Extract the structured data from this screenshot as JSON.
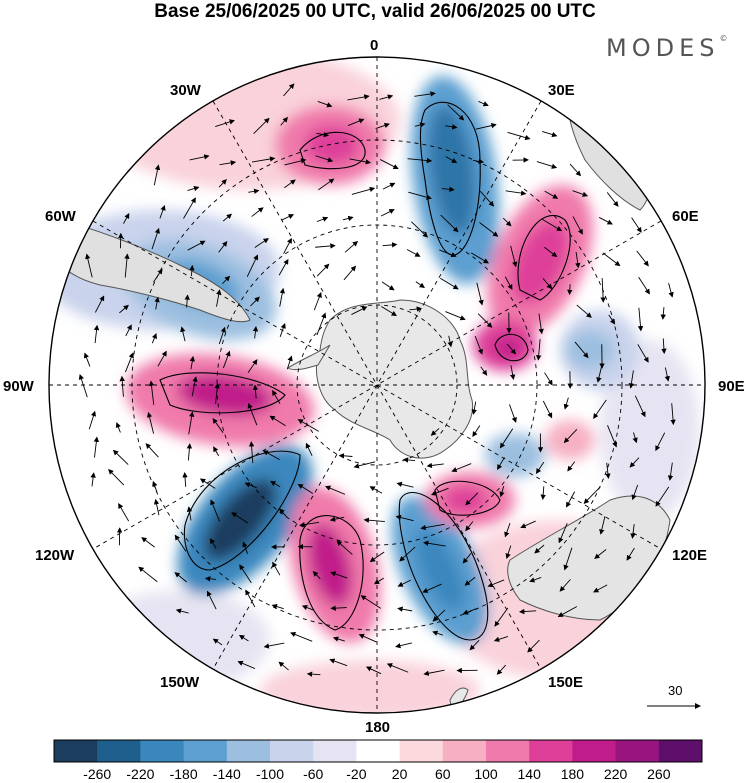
{
  "header": {
    "title": "Base 25/06/2025 00 UTC, valid 26/06/2025 00 UTC",
    "brand": "MODES",
    "brand_mark": "©"
  },
  "map": {
    "projection": "south polar stereographic",
    "longitude_labels": {
      "n0": "0",
      "n30e": "30E",
      "n60e": "60E",
      "n90e": "90E",
      "n120e": "120E",
      "n150e": "150E",
      "n180": "180",
      "n150w": "150W",
      "n120w": "120W",
      "n90w": "90W",
      "n60w": "60W",
      "n30w": "30W"
    },
    "graticule_style": "dashed",
    "vector_reference": {
      "value": "30"
    },
    "anomaly_features": [
      {
        "sign": "positive",
        "color": "#e04f9f",
        "level": 180
      },
      {
        "sign": "negative",
        "color": "#3a8cc4",
        "level": -180
      },
      {
        "sign": "positive",
        "color": "#e04f9f",
        "level": 180
      },
      {
        "sign": "negative",
        "color": "#3a8cc4",
        "level": -180
      },
      {
        "sign": "positive",
        "color": "#c01f92",
        "level": 220
      },
      {
        "sign": "negative",
        "color": "#17577f",
        "level": -240
      },
      {
        "sign": "positive",
        "color": "#c01f92",
        "level": 220
      },
      {
        "sign": "negative",
        "color": "#3a8cc4",
        "level": -180
      },
      {
        "sign": "positive",
        "color": "#e04f9f",
        "level": 180
      },
      {
        "sign": "positive",
        "color": "#e04f9f",
        "level": 180
      },
      {
        "sign": "negative",
        "color": "#6ea5d2",
        "level": -140
      }
    ]
  },
  "colorbar": {
    "colors": [
      "#1b3d5e",
      "#1f5f8d",
      "#3a87be",
      "#5c9fd0",
      "#9cbfe0",
      "#c9d3ec",
      "#e6e4f2",
      "#ffffff",
      "#fbd9dc",
      "#f6b0c2",
      "#f07aab",
      "#de3f99",
      "#c01c8a",
      "#98157f",
      "#5e0f6c"
    ],
    "labels": [
      "-260",
      "-220",
      "-180",
      "-140",
      "-100",
      "-60",
      "-20",
      "20",
      "60",
      "100",
      "140",
      "180",
      "220",
      "260"
    ]
  }
}
